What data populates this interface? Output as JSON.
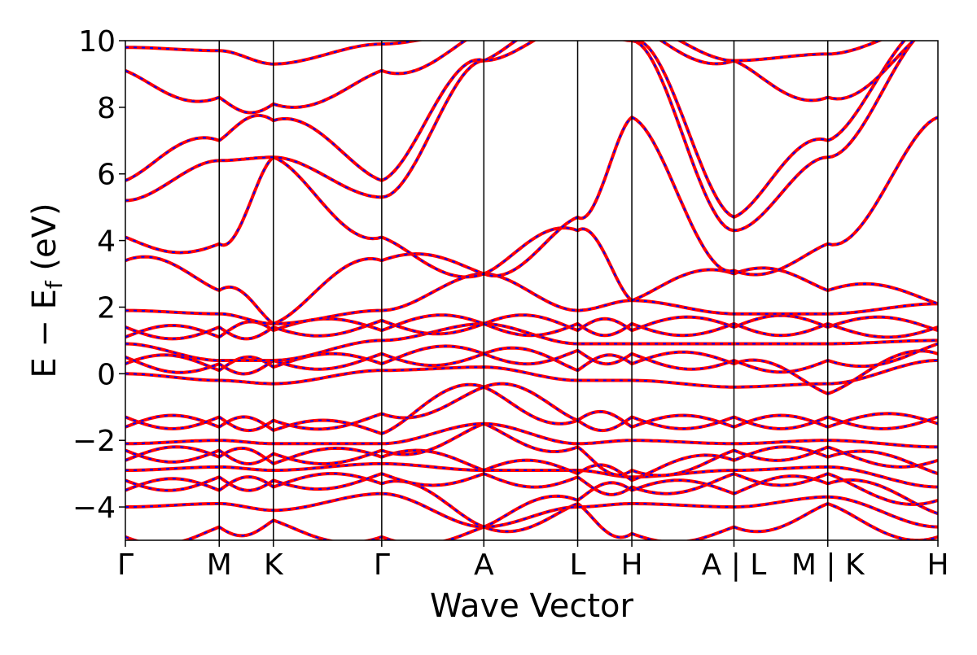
{
  "chart_data": {
    "type": "line",
    "title": "",
    "xlabel": "Wave Vector",
    "ylabel_parts": {
      "main": "E − E",
      "sub": "f",
      "unit": " (eV)"
    },
    "ylim": [
      -5,
      10
    ],
    "yticks": [
      10,
      8,
      6,
      4,
      2,
      0,
      -2,
      -4
    ],
    "ytick_labels": [
      "10",
      "8",
      "6",
      "4",
      "2",
      "0",
      "−2",
      "−4"
    ],
    "kpath_labels": [
      "Γ",
      "M",
      "K",
      "Γ",
      "A",
      "L",
      "H",
      "A | L",
      "M | K",
      "H"
    ],
    "kpath_positions": [
      0,
      0.5774,
      0.9107,
      1.5774,
      2.2058,
      2.7832,
      3.1165,
      3.7449,
      4.3223,
      5.0
    ],
    "series": [
      {
        "name": "",
        "color": "#ff0000",
        "style": "solid"
      },
      {
        "name": "",
        "color": "#0000ff",
        "style": "dashed"
      }
    ],
    "band_energies_at_nodes": [
      [
        -4.9,
        -4.6,
        -4.4,
        -4.9,
        -4.6,
        -3.9,
        -4.8,
        -4.6,
        -3.9,
        -4.9
      ],
      [
        -4.0,
        -3.9,
        -4.1,
        -3.6,
        -4.6,
        -4.0,
        -3.9,
        -4.0,
        -3.7,
        -4.6
      ],
      [
        -3.5,
        -3.5,
        -3.4,
        -3.3,
        -4.6,
        -3.8,
        -3.5,
        -3.6,
        -3.3,
        -4.2
      ],
      [
        -3.2,
        -3.1,
        -3.2,
        -3.0,
        -3.0,
        -3.1,
        -3.4,
        -3.0,
        -3.0,
        -3.8
      ],
      [
        -2.9,
        -2.8,
        -2.9,
        -2.7,
        -2.9,
        -2.9,
        -3.1,
        -2.9,
        -2.8,
        -3.4
      ],
      [
        -2.6,
        -2.5,
        -2.7,
        -2.5,
        -2.9,
        -3.0,
        -3.2,
        -2.6,
        -2.5,
        -3.0
      ],
      [
        -2.3,
        -2.3,
        -2.4,
        -2.3,
        -1.5,
        -2.2,
        -2.9,
        -2.3,
        -2.2,
        -2.6
      ],
      [
        -2.1,
        -2.0,
        -2.1,
        -2.1,
        -1.5,
        -2.1,
        -2.0,
        -2.1,
        -2.0,
        -2.2
      ],
      [
        -1.6,
        -1.6,
        -1.7,
        -1.8,
        -0.4,
        -1.4,
        -1.6,
        -1.6,
        -1.6,
        -1.5
      ],
      [
        -1.3,
        -1.3,
        -1.4,
        -1.2,
        -0.4,
        -1.4,
        -1.3,
        -1.3,
        -1.3,
        -1.3
      ],
      [
        0.0,
        -0.2,
        -0.3,
        0.1,
        0.2,
        -0.2,
        -0.2,
        -0.4,
        -0.3,
        0.4
      ],
      [
        0.3,
        0.1,
        0.2,
        0.3,
        0.6,
        0.1,
        0.3,
        0.3,
        -0.6,
        0.6
      ],
      [
        0.5,
        0.3,
        0.4,
        0.6,
        0.6,
        0.7,
        0.6,
        0.4,
        0.4,
        0.9
      ],
      [
        0.9,
        0.4,
        0.4,
        1.0,
        1.5,
        0.9,
        0.9,
        0.9,
        0.9,
        1.0
      ],
      [
        1.1,
        1.1,
        1.3,
        1.3,
        1.5,
        1.3,
        1.3,
        1.4,
        1.4,
        1.3
      ],
      [
        1.4,
        1.4,
        1.4,
        1.6,
        1.5,
        1.5,
        1.5,
        1.5,
        1.5,
        1.4
      ],
      [
        1.9,
        1.8,
        1.5,
        1.9,
        3.0,
        1.9,
        2.2,
        1.8,
        1.8,
        2.1
      ],
      [
        3.4,
        2.5,
        1.5,
        3.4,
        3.0,
        4.3,
        2.2,
        3.0,
        2.5,
        2.1
      ],
      [
        4.1,
        3.9,
        6.5,
        4.1,
        3.0,
        4.7,
        7.7,
        3.1,
        3.9,
        7.7
      ],
      [
        5.2,
        6.4,
        6.5,
        5.3,
        9.4,
        10.5,
        10.0,
        4.3,
        6.5,
        10.5
      ],
      [
        5.8,
        7.0,
        7.6,
        5.8,
        9.4,
        10.5,
        10.0,
        4.7,
        7.0,
        10.5
      ],
      [
        9.1,
        8.3,
        8.1,
        9.1,
        10.3,
        10.5,
        10.5,
        9.4,
        8.3,
        10.5
      ],
      [
        9.8,
        9.7,
        9.3,
        9.9,
        10.3,
        10.5,
        10.5,
        9.4,
        9.6,
        10.5
      ]
    ]
  }
}
